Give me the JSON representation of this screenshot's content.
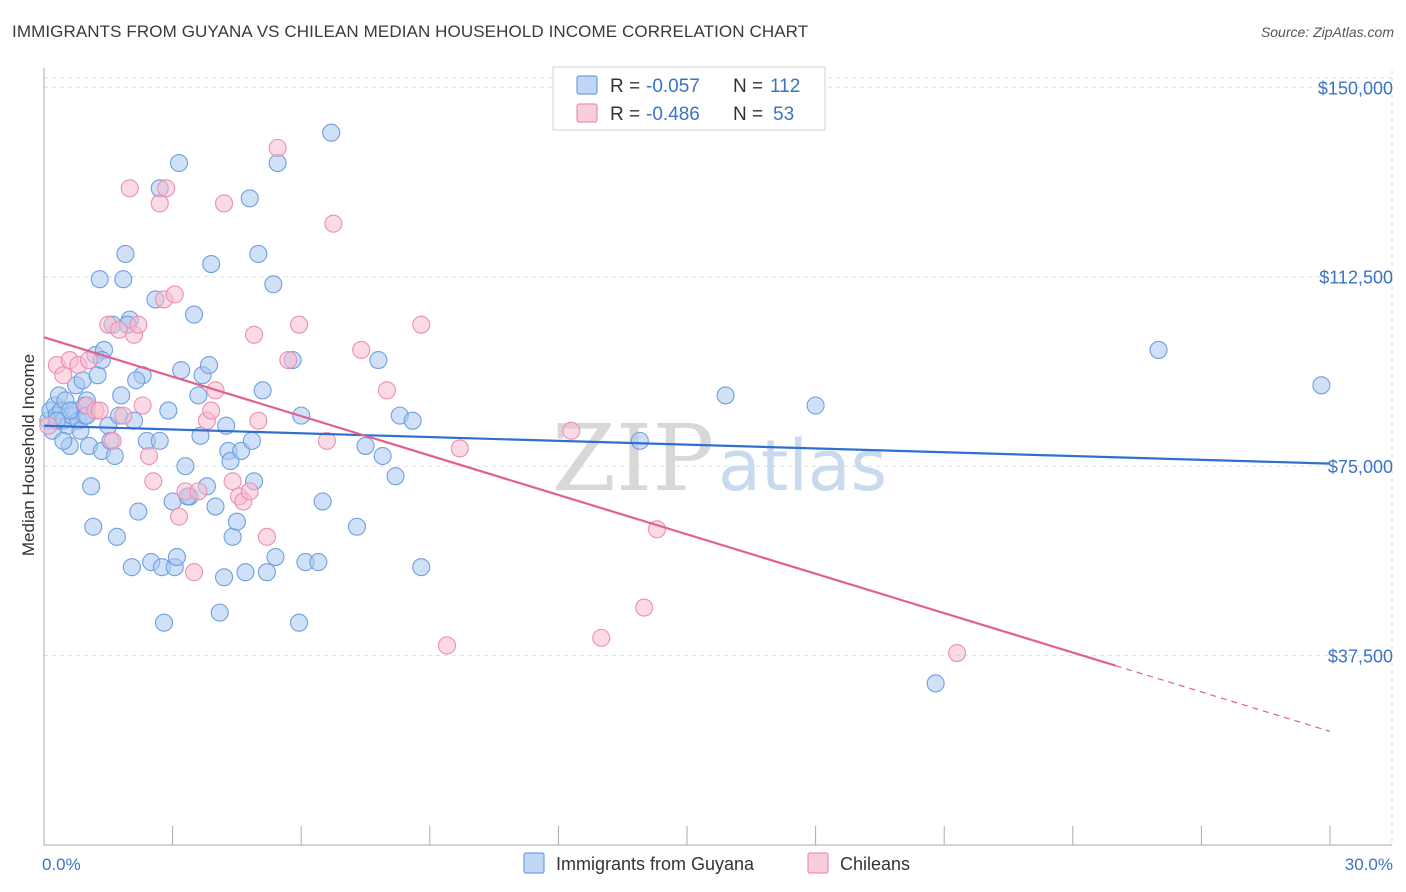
{
  "title": "IMMIGRANTS FROM GUYANA VS CHILEAN MEDIAN HOUSEHOLD INCOME CORRELATION CHART",
  "source": "Source: ZipAtlas.com",
  "watermark": {
    "zip": "ZIP",
    "atlas": "atlas"
  },
  "colors": {
    "blue_fill": "#a9c8f0",
    "blue_stroke": "#6f9fe0",
    "blue_line": "#2f6fd0",
    "pink_fill": "#f6bcd0",
    "pink_stroke": "#ee8fb0",
    "pink_line": "#e0608e",
    "axis_text": "#3b73c5",
    "grid": "#dddddd"
  },
  "legend": {
    "rows": [
      {
        "r_label": "R = ",
        "r_value": "-0.057",
        "n_label": "N = ",
        "n_value": "112"
      },
      {
        "r_label": "R = ",
        "r_value": "-0.486",
        "n_label": "N = ",
        "n_value": "53"
      }
    ]
  },
  "chart_data": {
    "type": "scatter",
    "title": "IMMIGRANTS FROM GUYANA VS CHILEAN MEDIAN HOUSEHOLD INCOME CORRELATION CHART",
    "xlabel": "",
    "ylabel": "Median Household Income",
    "xlim": [
      0,
      30
    ],
    "ylim": [
      0,
      155000
    ],
    "x_tick_labels": [
      "0.0%",
      "30.0%"
    ],
    "y_ticks": [
      37500,
      75000,
      112500,
      150000
    ],
    "y_tick_labels": [
      "$37,500",
      "$75,000",
      "$112,500",
      "$150,000"
    ],
    "grid": true,
    "legend_position": "top-center",
    "series": [
      {
        "name": "Immigrants from Guyana",
        "color": "blue",
        "trend": {
          "x": [
            0,
            30
          ],
          "y": [
            83000,
            75500
          ]
        },
        "points": [
          [
            0.1,
            84000
          ],
          [
            0.15,
            86000
          ],
          [
            0.2,
            82000
          ],
          [
            0.25,
            87000
          ],
          [
            0.3,
            85000
          ],
          [
            0.35,
            89000
          ],
          [
            0.4,
            86000
          ],
          [
            0.45,
            84000
          ],
          [
            0.5,
            88000
          ],
          [
            0.55,
            83000
          ],
          [
            0.6,
            79000
          ],
          [
            0.65,
            85000
          ],
          [
            0.7,
            86000
          ],
          [
            0.75,
            91000
          ],
          [
            0.8,
            84000
          ],
          [
            0.85,
            82000
          ],
          [
            0.9,
            92000
          ],
          [
            0.95,
            85000
          ],
          [
            1.0,
            88000
          ],
          [
            1.05,
            79000
          ],
          [
            1.1,
            71000
          ],
          [
            1.15,
            63000
          ],
          [
            1.2,
            97000
          ],
          [
            1.25,
            93000
          ],
          [
            1.3,
            112000
          ],
          [
            1.35,
            78000
          ],
          [
            1.4,
            98000
          ],
          [
            1.5,
            83000
          ],
          [
            1.55,
            80000
          ],
          [
            1.6,
            103000
          ],
          [
            1.65,
            77000
          ],
          [
            1.7,
            61000
          ],
          [
            1.75,
            85000
          ],
          [
            1.8,
            89000
          ],
          [
            1.85,
            112000
          ],
          [
            1.9,
            117000
          ],
          [
            2.0,
            104000
          ],
          [
            2.05,
            55000
          ],
          [
            2.1,
            84000
          ],
          [
            2.2,
            66000
          ],
          [
            2.3,
            93000
          ],
          [
            2.4,
            80000
          ],
          [
            2.5,
            56000
          ],
          [
            2.6,
            108000
          ],
          [
            2.7,
            80000
          ],
          [
            2.75,
            55000
          ],
          [
            2.8,
            44000
          ],
          [
            2.9,
            86000
          ],
          [
            3.0,
            68000
          ],
          [
            3.05,
            55000
          ],
          [
            3.1,
            57000
          ],
          [
            3.15,
            135000
          ],
          [
            3.2,
            94000
          ],
          [
            3.3,
            75000
          ],
          [
            3.4,
            69000
          ],
          [
            3.5,
            105000
          ],
          [
            3.6,
            89000
          ],
          [
            3.65,
            81000
          ],
          [
            3.7,
            93000
          ],
          [
            3.8,
            71000
          ],
          [
            3.85,
            95000
          ],
          [
            3.9,
            115000
          ],
          [
            4.0,
            67000
          ],
          [
            4.1,
            46000
          ],
          [
            4.2,
            53000
          ],
          [
            4.3,
            78000
          ],
          [
            4.35,
            76000
          ],
          [
            4.4,
            61000
          ],
          [
            4.5,
            64000
          ],
          [
            4.6,
            78000
          ],
          [
            4.7,
            54000
          ],
          [
            4.8,
            128000
          ],
          [
            4.85,
            80000
          ],
          [
            4.9,
            72000
          ],
          [
            5.0,
            117000
          ],
          [
            5.1,
            90000
          ],
          [
            5.2,
            54000
          ],
          [
            5.35,
            111000
          ],
          [
            5.4,
            57000
          ],
          [
            5.45,
            135000
          ],
          [
            5.8,
            96000
          ],
          [
            5.95,
            44000
          ],
          [
            6.0,
            85000
          ],
          [
            6.1,
            56000
          ],
          [
            6.4,
            56000
          ],
          [
            6.5,
            68000
          ],
          [
            6.7,
            141000
          ],
          [
            7.3,
            63000
          ],
          [
            7.5,
            79000
          ],
          [
            7.8,
            96000
          ],
          [
            7.9,
            77000
          ],
          [
            8.2,
            73000
          ],
          [
            8.3,
            85000
          ],
          [
            8.6,
            84000
          ],
          [
            8.8,
            55000
          ],
          [
            13.9,
            80000
          ],
          [
            15.9,
            89000
          ],
          [
            18.0,
            87000
          ],
          [
            20.8,
            32000
          ],
          [
            26.0,
            98000
          ],
          [
            29.8,
            91000
          ],
          [
            0.45,
            80000
          ],
          [
            1.35,
            96000
          ],
          [
            1.95,
            103000
          ],
          [
            2.15,
            92000
          ],
          [
            3.35,
            69000
          ],
          [
            4.25,
            83000
          ],
          [
            0.6,
            86000
          ],
          [
            0.95,
            87000
          ],
          [
            0.3,
            84000
          ],
          [
            1.0,
            85000
          ],
          [
            2.7,
            130000
          ]
        ]
      },
      {
        "name": "Chileans",
        "color": "pink",
        "trend": {
          "x": [
            0,
            25
          ],
          "y": [
            100500,
            35500
          ]
        },
        "trend_dashed": {
          "x": [
            25,
            30
          ],
          "y": [
            35500,
            22500
          ]
        },
        "points": [
          [
            0.1,
            83000
          ],
          [
            0.3,
            95000
          ],
          [
            0.45,
            93000
          ],
          [
            0.6,
            96000
          ],
          [
            0.8,
            95000
          ],
          [
            1.0,
            87000
          ],
          [
            1.05,
            96000
          ],
          [
            1.2,
            86000
          ],
          [
            1.3,
            86000
          ],
          [
            1.5,
            103000
          ],
          [
            1.6,
            80000
          ],
          [
            1.75,
            102000
          ],
          [
            1.85,
            85000
          ],
          [
            2.0,
            130000
          ],
          [
            2.1,
            101000
          ],
          [
            2.2,
            103000
          ],
          [
            2.3,
            87000
          ],
          [
            2.45,
            77000
          ],
          [
            2.55,
            72000
          ],
          [
            2.7,
            127000
          ],
          [
            2.8,
            108000
          ],
          [
            2.85,
            130000
          ],
          [
            3.05,
            109000
          ],
          [
            3.15,
            65000
          ],
          [
            3.3,
            70000
          ],
          [
            3.5,
            54000
          ],
          [
            3.6,
            70000
          ],
          [
            3.8,
            84000
          ],
          [
            3.9,
            86000
          ],
          [
            4.0,
            90000
          ],
          [
            4.2,
            127000
          ],
          [
            4.4,
            72000
          ],
          [
            4.55,
            69000
          ],
          [
            4.65,
            68000
          ],
          [
            4.8,
            70000
          ],
          [
            4.9,
            101000
          ],
          [
            5.0,
            84000
          ],
          [
            5.2,
            61000
          ],
          [
            5.45,
            138000
          ],
          [
            5.7,
            96000
          ],
          [
            5.95,
            103000
          ],
          [
            6.6,
            80000
          ],
          [
            6.75,
            123000
          ],
          [
            7.4,
            98000
          ],
          [
            8.0,
            90000
          ],
          [
            8.8,
            103000
          ],
          [
            9.4,
            39500
          ],
          [
            9.7,
            78500
          ],
          [
            12.3,
            82000
          ],
          [
            13.0,
            41000
          ],
          [
            14.0,
            47000
          ],
          [
            14.3,
            62500
          ],
          [
            21.3,
            38000
          ]
        ]
      }
    ]
  },
  "bottom_legend": [
    "Immigrants from Guyana",
    "Chileans"
  ]
}
